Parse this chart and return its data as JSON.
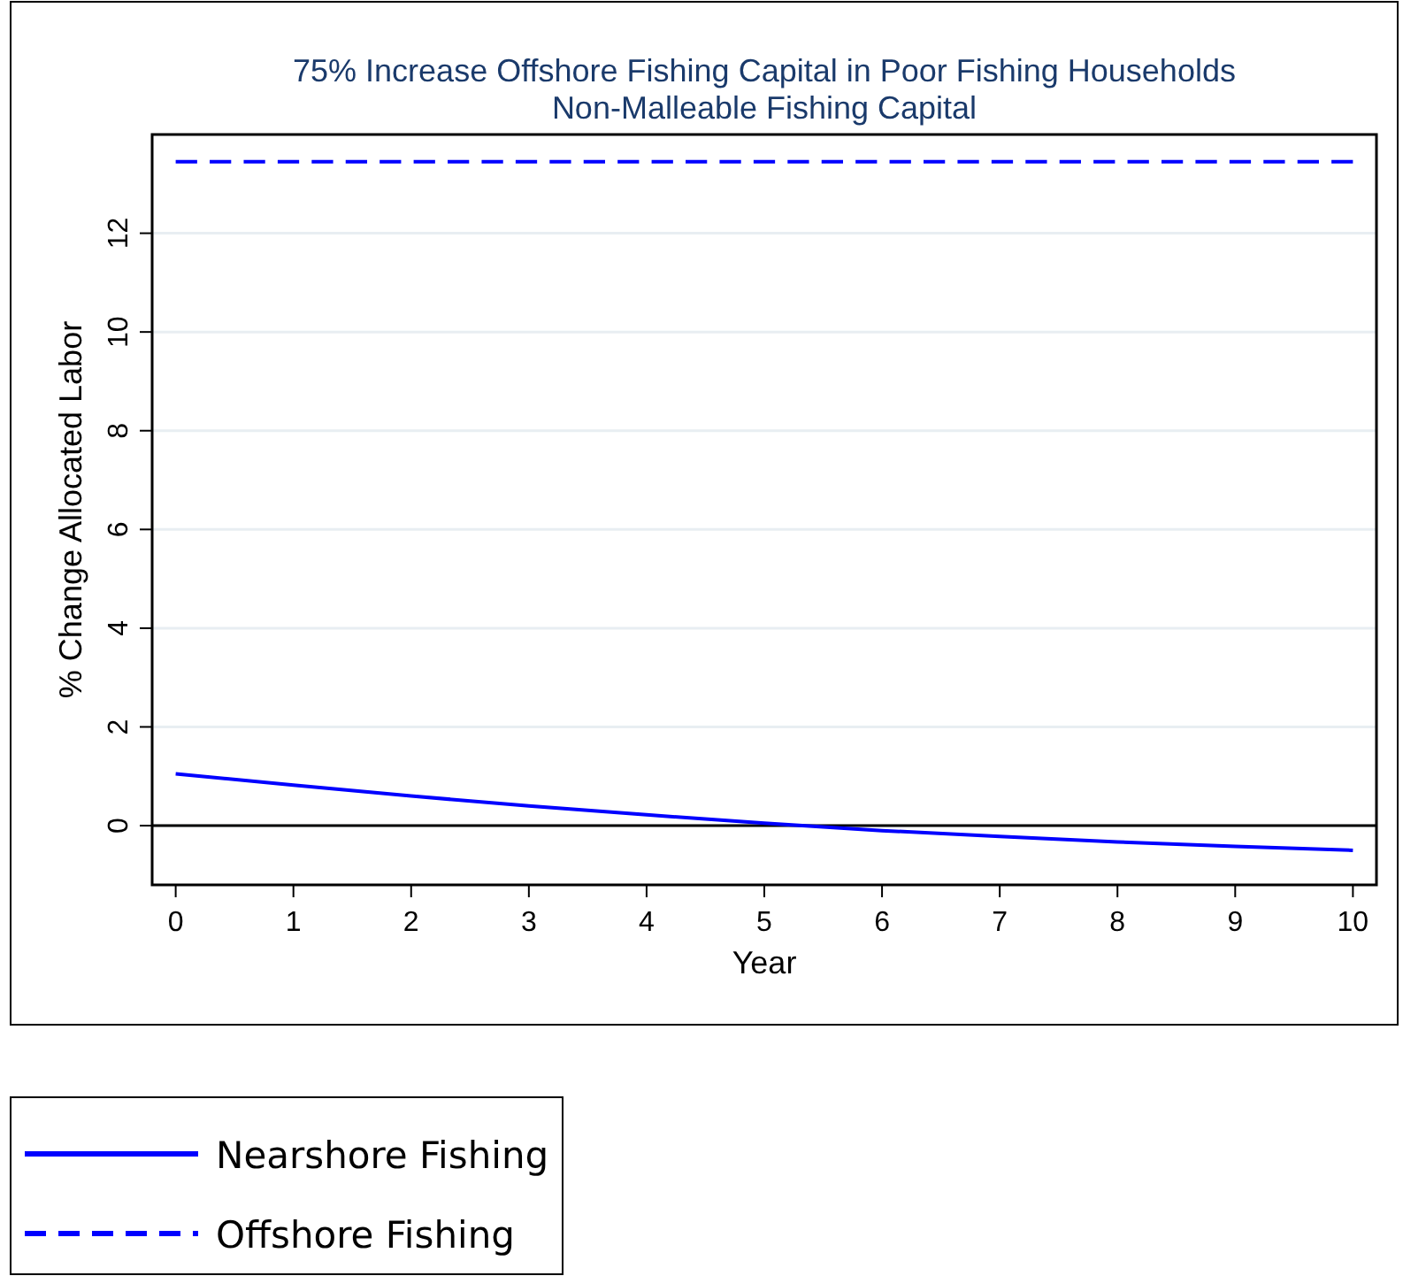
{
  "chart_data": {
    "type": "line",
    "title": "75% Increase Offshore Fishing Capital in Poor Fishing Households",
    "subtitle": "Non-Malleable Fishing Capital",
    "xlabel": "Year",
    "ylabel": "% Change Allocated Labor",
    "x": [
      0,
      1,
      2,
      3,
      4,
      5,
      6,
      7,
      8,
      9,
      10
    ],
    "series": [
      {
        "name": "Nearshore Fishing",
        "color": "#0000ff",
        "line_style": "solid",
        "values": [
          1.05,
          0.82,
          0.6,
          0.4,
          0.22,
          0.05,
          -0.1,
          -0.22,
          -0.33,
          -0.42,
          -0.5
        ]
      },
      {
        "name": "Offshore Fishing",
        "color": "#0000ff",
        "line_style": "dashed",
        "values": [
          13.45,
          13.45,
          13.45,
          13.45,
          13.45,
          13.45,
          13.45,
          13.45,
          13.45,
          13.45,
          13.45
        ]
      }
    ],
    "xlim": [
      -0.2,
      10.2
    ],
    "xticks": [
      0,
      1,
      2,
      3,
      4,
      5,
      6,
      7,
      8,
      9,
      10
    ],
    "ylim": [
      -1.2,
      14
    ],
    "yticks": [
      0,
      2,
      4,
      6,
      8,
      10,
      12
    ],
    "ref_lines": [
      {
        "axis": "y",
        "value": 0,
        "color": "#000000"
      }
    ],
    "grid": "y",
    "legend": "bottom left",
    "marker": "none"
  }
}
